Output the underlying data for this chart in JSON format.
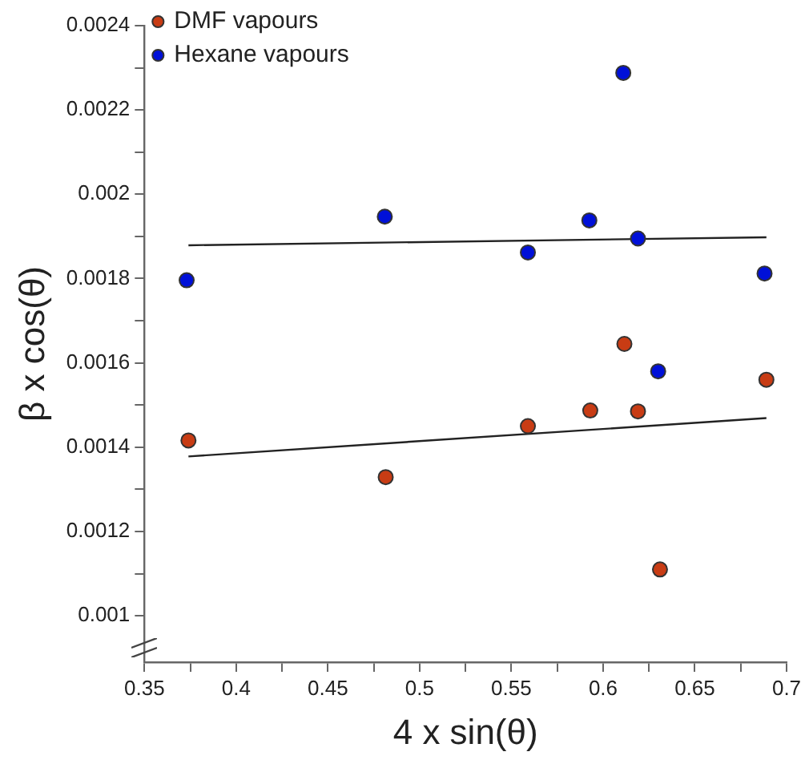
{
  "chart_data": {
    "type": "scatter",
    "xlabel": "4 x sin(θ)",
    "ylabel": "β x cos(θ)",
    "xlim": [
      0.35,
      0.7
    ],
    "xticks": [
      0.35,
      {
        "value": 0.375,
        "label": null
      },
      0.4,
      {
        "value": 0.425,
        "label": null
      },
      0.45,
      {
        "value": 0.475,
        "label": null
      },
      0.5,
      {
        "value": 0.525,
        "label": null
      },
      0.55,
      {
        "value": 0.575,
        "label": null
      },
      0.6,
      {
        "value": 0.625,
        "label": null
      },
      0.65,
      {
        "value": 0.675,
        "label": null
      },
      0.7
    ],
    "ylim": [
      0.00089,
      0.0024
    ],
    "yticks": [
      0.001,
      {
        "value": 0.0011,
        "label": null
      },
      0.0012,
      {
        "value": 0.0013,
        "label": null
      },
      0.0014,
      {
        "value": 0.0015,
        "label": null
      },
      0.0016,
      {
        "value": 0.0017,
        "label": null
      },
      0.0018,
      {
        "value": 0.0019,
        "label": null
      },
      0.002,
      {
        "value": 0.0021,
        "label": null
      },
      0.0022,
      {
        "value": 0.0023,
        "label": null
      },
      0.0024
    ],
    "grid": false,
    "legend": "top left",
    "marker": "circle",
    "series": [
      {
        "name": "DMF vapours",
        "type": "scatter",
        "color": "#c83c14",
        "x": [
          0.374,
          0.4815,
          0.559,
          0.593,
          0.6116,
          0.619,
          0.631,
          0.689
        ],
        "values": [
          0.001416,
          0.001329,
          0.00145,
          0.001487,
          0.001645,
          0.001485,
          0.00111,
          0.00156
        ]
      },
      {
        "name": "Hexane vapours",
        "type": "scatter",
        "color": "#0010d8",
        "x": [
          0.373,
          0.481,
          0.559,
          0.5925,
          0.611,
          0.619,
          0.63,
          0.688
        ],
        "values": [
          0.001796,
          0.001947,
          0.001862,
          0.001938,
          0.002288,
          0.001895,
          0.00158,
          0.001812
        ]
      },
      {
        "type": "line",
        "color": "#222222",
        "marker": "none",
        "x": [
          0.374,
          0.689
        ],
        "values": [
          0.001879,
          0.001898
        ]
      },
      {
        "type": "line",
        "color": "#222222",
        "marker": "none",
        "x": [
          0.374,
          0.689
        ],
        "values": [
          0.001378,
          0.001469
        ]
      }
    ]
  }
}
